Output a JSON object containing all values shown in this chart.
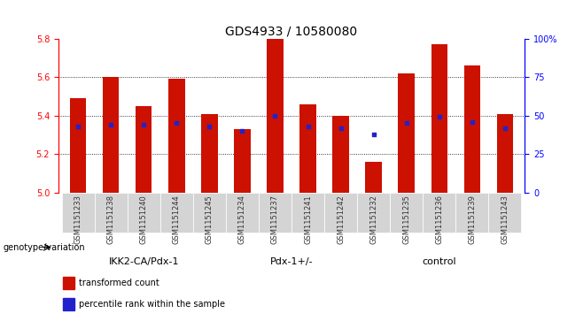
{
  "title": "GDS4933 / 10580080",
  "samples": [
    "GSM1151233",
    "GSM1151238",
    "GSM1151240",
    "GSM1151244",
    "GSM1151245",
    "GSM1151234",
    "GSM1151237",
    "GSM1151241",
    "GSM1151242",
    "GSM1151232",
    "GSM1151235",
    "GSM1151236",
    "GSM1151239",
    "GSM1151243"
  ],
  "bar_values": [
    5.49,
    5.6,
    5.45,
    5.59,
    5.41,
    5.33,
    5.8,
    5.46,
    5.4,
    5.16,
    5.62,
    5.77,
    5.66,
    5.41
  ],
  "percentile_values": [
    43,
    44,
    44,
    45,
    43,
    40,
    50,
    43,
    42,
    38,
    45,
    49,
    46,
    42
  ],
  "groups": [
    {
      "label": "IKK2-CA/Pdx-1",
      "start": 0,
      "end": 5,
      "color": "#c8f0c0"
    },
    {
      "label": "Pdx-1+/-",
      "start": 5,
      "end": 9,
      "color": "#80e880"
    },
    {
      "label": "control",
      "start": 9,
      "end": 14,
      "color": "#80e880"
    }
  ],
  "ylim": [
    5.0,
    5.8
  ],
  "y_left_ticks": [
    5.0,
    5.2,
    5.4,
    5.6,
    5.8
  ],
  "y_right_ticks": [
    0,
    25,
    50,
    75,
    100
  ],
  "bar_color": "#cc1100",
  "dot_color": "#2222cc",
  "bar_width": 0.5,
  "legend_labels": [
    "transformed count",
    "percentile rank within the sample"
  ],
  "genotype_label": "genotype/variation",
  "title_fontsize": 10,
  "tick_fontsize": 7,
  "group_fontsize": 8,
  "xtick_fontsize": 6,
  "xticklabel_color": "#333333",
  "gray_bg": "#d4d4d4",
  "grid_color": "#000000",
  "grid_linestyle": ":",
  "grid_linewidth": 0.6
}
